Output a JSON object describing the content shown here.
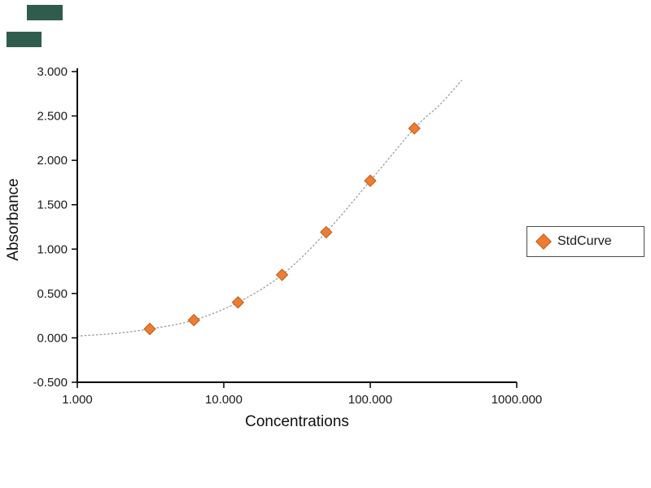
{
  "chart_data": {
    "type": "scatter",
    "title": "",
    "xlabel": "Concentrations",
    "ylabel": "Absorbance",
    "x_scale": "log",
    "xlim": [
      1,
      1000
    ],
    "ylim": [
      -0.5,
      3.0
    ],
    "grid": false,
    "legend_position": "right",
    "x_ticks": [
      {
        "value": 1,
        "label": "1.000"
      },
      {
        "value": 10,
        "label": "10.000"
      },
      {
        "value": 100,
        "label": "100.000"
      },
      {
        "value": 1000,
        "label": "1000.000"
      }
    ],
    "y_ticks": [
      {
        "value": 3.0,
        "label": "3.000"
      },
      {
        "value": 2.5,
        "label": "2.500"
      },
      {
        "value": 2.0,
        "label": "2.000"
      },
      {
        "value": 1.5,
        "label": "1.500"
      },
      {
        "value": 1.0,
        "label": "1.000"
      },
      {
        "value": 0.5,
        "label": "0.500"
      },
      {
        "value": 0.0,
        "label": "0.000"
      },
      {
        "value": -0.5,
        "label": "-0.500"
      }
    ],
    "series": [
      {
        "name": "StdCurve",
        "marker": "diamond",
        "marker_color": "#ED7D31",
        "marker_edge_color": "#B65D1F",
        "x": [
          3.125,
          6.25,
          12.5,
          25,
          50,
          100,
          200
        ],
        "y": [
          0.1,
          0.2,
          0.4,
          0.71,
          1.19,
          1.77,
          2.36
        ]
      }
    ],
    "curve": {
      "description": "fitted standard curve, dotted",
      "style": "dotted",
      "color": "#9b9b9b",
      "x": [
        1,
        1.8,
        3.125,
        6.25,
        12.5,
        25,
        50,
        100,
        200,
        300,
        420
      ],
      "y": [
        0.02,
        0.05,
        0.1,
        0.2,
        0.4,
        0.71,
        1.19,
        1.77,
        2.36,
        2.63,
        2.9
      ]
    }
  },
  "colors": {
    "corner_blocks": "#305C4E",
    "axis": "#000000",
    "background": "#ffffff"
  }
}
